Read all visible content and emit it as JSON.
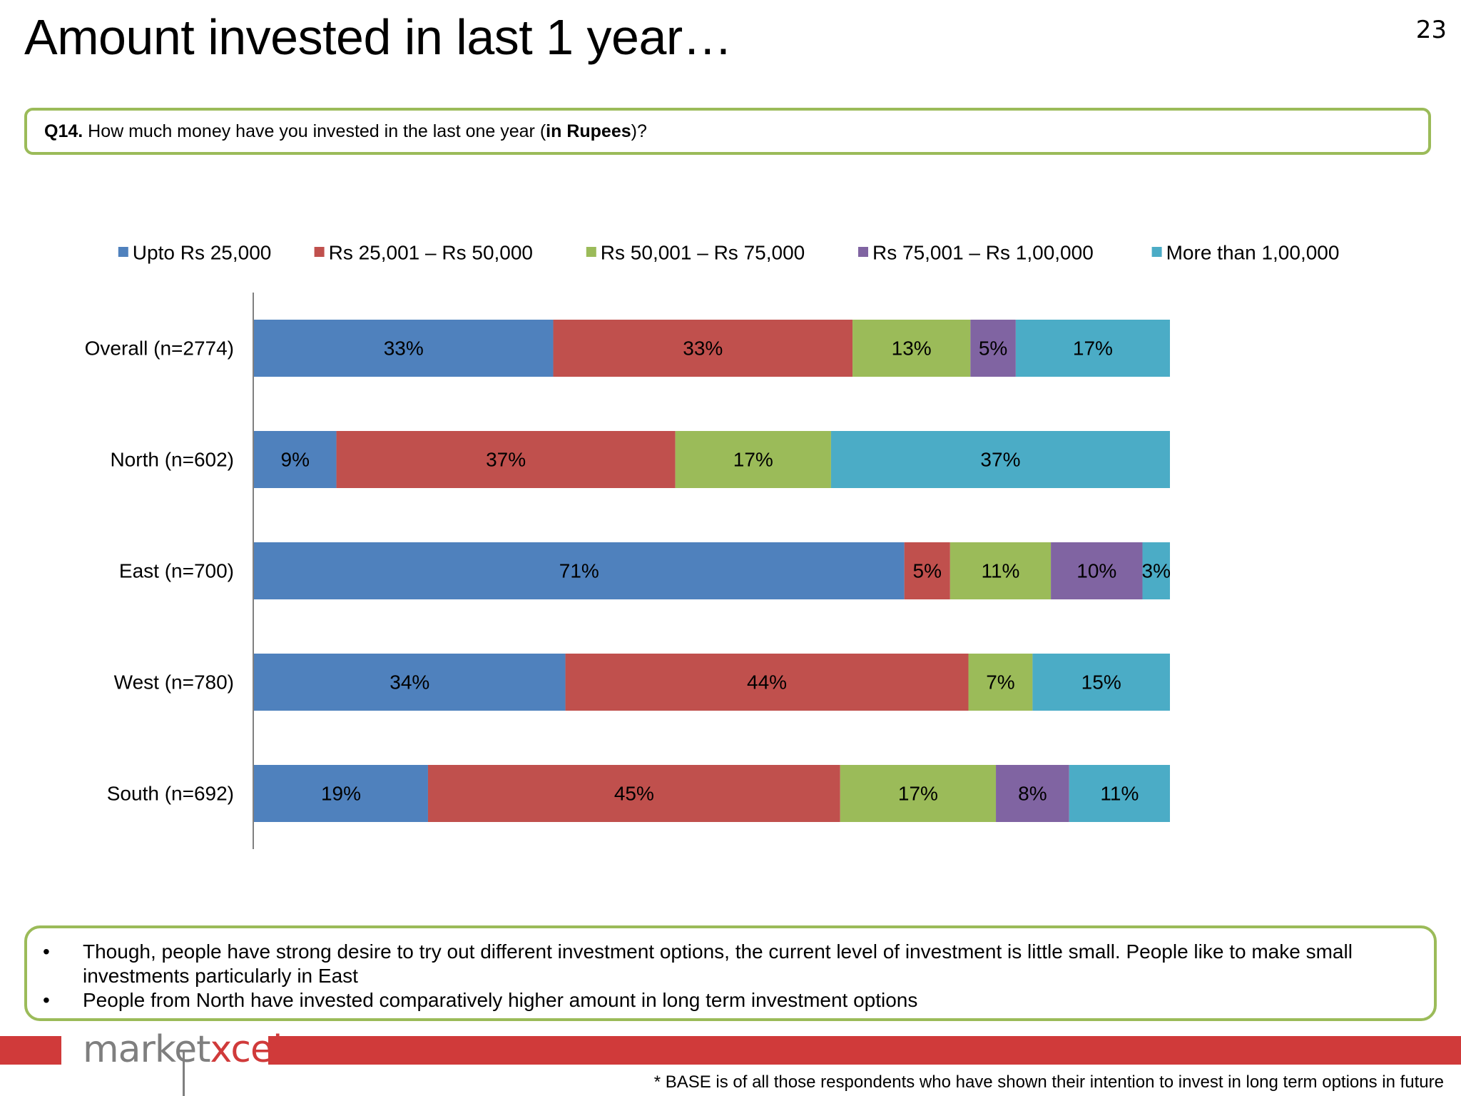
{
  "page": {
    "title": "Amount invested in last 1 year…",
    "page_number": "23"
  },
  "question": {
    "label": "Q14.",
    "text_before": " How much money have you invested in the last one year (",
    "emphasis": "in Rupees",
    "text_after": ")?"
  },
  "chart_data": {
    "type": "bar",
    "orientation": "horizontal",
    "stacked": true,
    "categories": [
      "Overall (n=2774)",
      "North (n=602)",
      "East (n=700)",
      "West (n=780)",
      "South (n=692)"
    ],
    "series": [
      {
        "name": "Upto Rs 25,000",
        "color": "#4f81bd",
        "values": [
          33,
          9,
          71,
          34,
          19
        ]
      },
      {
        "name": "Rs 25,001 – Rs 50,000",
        "color": "#c0504d",
        "values": [
          33,
          37,
          5,
          44,
          45
        ]
      },
      {
        "name": "Rs 50,001 – Rs 75,000",
        "color": "#9bbb59",
        "values": [
          13,
          17,
          11,
          7,
          17
        ]
      },
      {
        "name": "Rs 75,001 – Rs 1,00,000",
        "color": "#8064a2",
        "values": [
          5,
          0,
          10,
          0,
          8
        ]
      },
      {
        "name": "More than 1,00,000",
        "color": "#4bacc6",
        "values": [
          17,
          37,
          3,
          15,
          11
        ]
      }
    ],
    "value_suffix": "%",
    "data_labels": true,
    "legend_position": "top",
    "grid": false
  },
  "insights": [
    "Though, people have strong desire to try  out different investment options, the current level of investment is little small. People like to make small investments particularly in East",
    "People from North have invested comparatively higher amount in long term investment options"
  ],
  "bullet_char": "•",
  "logo": {
    "part_a": "market",
    "part_b": "xcel"
  },
  "footnote": "* BASE is of all those respondents who have shown their intention to invest in long term options in future"
}
